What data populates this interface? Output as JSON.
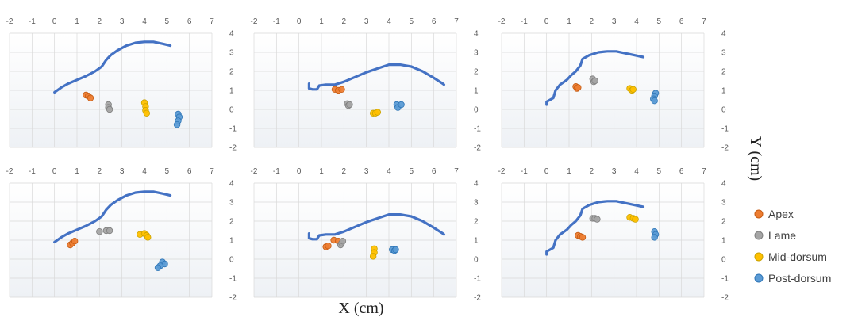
{
  "axis_titles": {
    "x": "X (cm)",
    "y": "Y (cm)"
  },
  "legend": [
    {
      "name": "Apex",
      "fill": "#ED7D31",
      "stroke": "#C55A11"
    },
    {
      "name": "Lame",
      "fill": "#A5A5A5",
      "stroke": "#7F7F7F"
    },
    {
      "name": "Mid-dorsum",
      "fill": "#FFC000",
      "stroke": "#C9A200"
    },
    {
      "name": "Post-dorsum",
      "fill": "#5B9BD5",
      "stroke": "#2E75B6"
    }
  ],
  "colors": {
    "curve": "#4472C4",
    "grid": "#D9D9D9",
    "plot_bg_top": "#FFFFFF",
    "plot_bg_bottom": "#EEF1F5"
  },
  "chart_data": [
    {
      "type": "scatter",
      "xlim": [
        -2,
        7
      ],
      "ylim": [
        -2,
        4
      ],
      "x_ticks": [
        -2,
        -1,
        0,
        1,
        2,
        3,
        4,
        5,
        6,
        7
      ],
      "y_ticks": [
        -2,
        -1,
        0,
        1,
        2,
        3,
        4
      ],
      "grid": true,
      "curve": [
        [
          0,
          0.9
        ],
        [
          0.3,
          1.15
        ],
        [
          0.6,
          1.35
        ],
        [
          1.0,
          1.55
        ],
        [
          1.4,
          1.75
        ],
        [
          1.8,
          2.0
        ],
        [
          2.1,
          2.25
        ],
        [
          2.3,
          2.6
        ],
        [
          2.5,
          2.85
        ],
        [
          2.8,
          3.1
        ],
        [
          3.2,
          3.35
        ],
        [
          3.6,
          3.5
        ],
        [
          4.0,
          3.55
        ],
        [
          4.4,
          3.55
        ],
        [
          4.8,
          3.45
        ],
        [
          5.15,
          3.35
        ]
      ],
      "series": [
        {
          "name": "Apex",
          "points": [
            [
              1.4,
              0.75
            ],
            [
              1.5,
              0.7
            ],
            [
              1.6,
              0.6
            ]
          ]
        },
        {
          "name": "Lame",
          "points": [
            [
              2.4,
              0.25
            ],
            [
              2.4,
              0.1
            ],
            [
              2.45,
              0.0
            ]
          ]
        },
        {
          "name": "Mid-dorsum",
          "points": [
            [
              4.0,
              0.35
            ],
            [
              4.05,
              0.15
            ],
            [
              4.05,
              -0.05
            ],
            [
              4.1,
              -0.2
            ]
          ]
        },
        {
          "name": "Post-dorsum",
          "points": [
            [
              5.5,
              -0.25
            ],
            [
              5.55,
              -0.4
            ],
            [
              5.5,
              -0.6
            ],
            [
              5.45,
              -0.8
            ]
          ]
        }
      ]
    },
    {
      "type": "scatter",
      "xlim": [
        -2,
        7
      ],
      "ylim": [
        -2,
        4
      ],
      "x_ticks": [
        -2,
        -1,
        0,
        1,
        2,
        3,
        4,
        5,
        6,
        7
      ],
      "y_ticks": [
        -2,
        -1,
        0,
        1,
        2,
        3,
        4
      ],
      "grid": true,
      "curve": [
        [
          0.45,
          1.35
        ],
        [
          0.45,
          1.1
        ],
        [
          0.6,
          1.05
        ],
        [
          0.8,
          1.05
        ],
        [
          0.9,
          1.25
        ],
        [
          1.2,
          1.3
        ],
        [
          1.6,
          1.3
        ],
        [
          2.0,
          1.45
        ],
        [
          2.5,
          1.7
        ],
        [
          3.0,
          1.95
        ],
        [
          3.5,
          2.15
        ],
        [
          4.0,
          2.35
        ],
        [
          4.5,
          2.35
        ],
        [
          5.0,
          2.25
        ],
        [
          5.5,
          2.0
        ],
        [
          6.0,
          1.65
        ],
        [
          6.4,
          1.35
        ],
        [
          6.45,
          1.3
        ]
      ],
      "series": [
        {
          "name": "Apex",
          "points": [
            [
              1.6,
              1.05
            ],
            [
              1.75,
              1.0
            ],
            [
              1.9,
              1.05
            ]
          ]
        },
        {
          "name": "Lame",
          "points": [
            [
              2.15,
              0.3
            ],
            [
              2.2,
              0.2
            ],
            [
              2.25,
              0.25
            ]
          ]
        },
        {
          "name": "Mid-dorsum",
          "points": [
            [
              3.3,
              -0.2
            ],
            [
              3.4,
              -0.2
            ],
            [
              3.5,
              -0.15
            ]
          ]
        },
        {
          "name": "Post-dorsum",
          "points": [
            [
              4.35,
              0.25
            ],
            [
              4.4,
              0.1
            ],
            [
              4.55,
              0.25
            ]
          ]
        }
      ]
    },
    {
      "type": "scatter",
      "xlim": [
        -2,
        7
      ],
      "ylim": [
        -2,
        4
      ],
      "x_ticks": [
        -2,
        -1,
        0,
        1,
        2,
        3,
        4,
        5,
        6,
        7
      ],
      "y_ticks": [
        -2,
        -1,
        0,
        1,
        2,
        3,
        4
      ],
      "grid": true,
      "curve": [
        [
          0,
          0.25
        ],
        [
          0,
          0.4
        ],
        [
          0.3,
          0.6
        ],
        [
          0.4,
          1.0
        ],
        [
          0.6,
          1.3
        ],
        [
          0.9,
          1.55
        ],
        [
          1.1,
          1.8
        ],
        [
          1.3,
          2.0
        ],
        [
          1.5,
          2.3
        ],
        [
          1.6,
          2.65
        ],
        [
          1.9,
          2.85
        ],
        [
          2.3,
          3.0
        ],
        [
          2.7,
          3.05
        ],
        [
          3.1,
          3.05
        ],
        [
          3.5,
          2.95
        ],
        [
          3.9,
          2.85
        ],
        [
          4.3,
          2.75
        ]
      ],
      "series": [
        {
          "name": "Apex",
          "points": [
            [
              1.3,
              1.2
            ],
            [
              1.35,
              1.1
            ],
            [
              1.4,
              1.15
            ]
          ]
        },
        {
          "name": "Lame",
          "points": [
            [
              2.05,
              1.6
            ],
            [
              2.1,
              1.45
            ],
            [
              2.15,
              1.5
            ]
          ]
        },
        {
          "name": "Mid-dorsum",
          "points": [
            [
              3.7,
              1.1
            ],
            [
              3.8,
              1.0
            ],
            [
              3.85,
              1.05
            ]
          ]
        },
        {
          "name": "Post-dorsum",
          "points": [
            [
              4.85,
              0.85
            ],
            [
              4.8,
              0.7
            ],
            [
              4.75,
              0.55
            ],
            [
              4.8,
              0.45
            ]
          ]
        }
      ]
    },
    {
      "type": "scatter",
      "xlim": [
        -2,
        7
      ],
      "ylim": [
        -2,
        4
      ],
      "x_ticks": [
        -2,
        -1,
        0,
        1,
        2,
        3,
        4,
        5,
        6,
        7
      ],
      "y_ticks": [
        -2,
        -1,
        0,
        1,
        2,
        3,
        4
      ],
      "grid": true,
      "curve": [
        [
          0,
          0.9
        ],
        [
          0.3,
          1.15
        ],
        [
          0.6,
          1.35
        ],
        [
          1.0,
          1.55
        ],
        [
          1.4,
          1.75
        ],
        [
          1.8,
          2.0
        ],
        [
          2.1,
          2.25
        ],
        [
          2.3,
          2.6
        ],
        [
          2.5,
          2.85
        ],
        [
          2.8,
          3.1
        ],
        [
          3.2,
          3.35
        ],
        [
          3.6,
          3.5
        ],
        [
          4.0,
          3.55
        ],
        [
          4.4,
          3.55
        ],
        [
          4.8,
          3.45
        ],
        [
          5.15,
          3.35
        ]
      ],
      "series": [
        {
          "name": "Apex",
          "points": [
            [
              0.7,
              0.75
            ],
            [
              0.8,
              0.85
            ],
            [
              0.9,
              0.95
            ]
          ]
        },
        {
          "name": "Lame",
          "points": [
            [
              2.0,
              1.45
            ],
            [
              2.3,
              1.5
            ],
            [
              2.45,
              1.5
            ]
          ]
        },
        {
          "name": "Mid-dorsum",
          "points": [
            [
              3.8,
              1.3
            ],
            [
              4.0,
              1.35
            ],
            [
              4.1,
              1.25
            ],
            [
              4.15,
              1.15
            ]
          ]
        },
        {
          "name": "Post-dorsum",
          "points": [
            [
              4.8,
              -0.15
            ],
            [
              4.9,
              -0.25
            ],
            [
              4.7,
              -0.35
            ],
            [
              4.6,
              -0.45
            ]
          ]
        }
      ]
    },
    {
      "type": "scatter",
      "xlim": [
        -2,
        7
      ],
      "ylim": [
        -2,
        4
      ],
      "x_ticks": [
        -2,
        -1,
        0,
        1,
        2,
        3,
        4,
        5,
        6,
        7
      ],
      "y_ticks": [
        -2,
        -1,
        0,
        1,
        2,
        3,
        4
      ],
      "grid": true,
      "curve": [
        [
          0.45,
          1.35
        ],
        [
          0.45,
          1.1
        ],
        [
          0.6,
          1.05
        ],
        [
          0.8,
          1.05
        ],
        [
          0.9,
          1.25
        ],
        [
          1.2,
          1.3
        ],
        [
          1.6,
          1.3
        ],
        [
          2.0,
          1.45
        ],
        [
          2.5,
          1.7
        ],
        [
          3.0,
          1.95
        ],
        [
          3.5,
          2.15
        ],
        [
          4.0,
          2.35
        ],
        [
          4.5,
          2.35
        ],
        [
          5.0,
          2.25
        ],
        [
          5.5,
          2.0
        ],
        [
          6.0,
          1.65
        ],
        [
          6.4,
          1.35
        ],
        [
          6.45,
          1.3
        ]
      ],
      "series": [
        {
          "name": "Apex",
          "points": [
            [
              1.2,
              0.65
            ],
            [
              1.3,
              0.7
            ],
            [
              1.55,
              1.0
            ],
            [
              1.75,
              0.95
            ]
          ]
        },
        {
          "name": "Lame",
          "points": [
            [
              1.85,
              0.75
            ],
            [
              1.9,
              0.85
            ],
            [
              1.95,
              0.95
            ]
          ]
        },
        {
          "name": "Mid-dorsum",
          "points": [
            [
              3.35,
              0.55
            ],
            [
              3.35,
              0.35
            ],
            [
              3.3,
              0.15
            ]
          ]
        },
        {
          "name": "Post-dorsum",
          "points": [
            [
              4.15,
              0.5
            ],
            [
              4.25,
              0.45
            ],
            [
              4.3,
              0.5
            ]
          ]
        }
      ]
    },
    {
      "type": "scatter",
      "xlim": [
        -2,
        7
      ],
      "ylim": [
        -2,
        4
      ],
      "x_ticks": [
        -2,
        -1,
        0,
        1,
        2,
        3,
        4,
        5,
        6,
        7
      ],
      "y_ticks": [
        -2,
        -1,
        0,
        1,
        2,
        3,
        4
      ],
      "grid": true,
      "curve": [
        [
          0,
          0.25
        ],
        [
          0,
          0.4
        ],
        [
          0.3,
          0.6
        ],
        [
          0.4,
          1.0
        ],
        [
          0.6,
          1.3
        ],
        [
          0.9,
          1.55
        ],
        [
          1.1,
          1.8
        ],
        [
          1.3,
          2.0
        ],
        [
          1.5,
          2.3
        ],
        [
          1.6,
          2.65
        ],
        [
          1.9,
          2.85
        ],
        [
          2.3,
          3.0
        ],
        [
          2.7,
          3.05
        ],
        [
          3.1,
          3.05
        ],
        [
          3.5,
          2.95
        ],
        [
          3.9,
          2.85
        ],
        [
          4.3,
          2.75
        ]
      ],
      "series": [
        {
          "name": "Apex",
          "points": [
            [
              1.4,
              1.25
            ],
            [
              1.5,
              1.2
            ],
            [
              1.6,
              1.15
            ]
          ]
        },
        {
          "name": "Lame",
          "points": [
            [
              2.05,
              2.15
            ],
            [
              2.15,
              2.15
            ],
            [
              2.25,
              2.1
            ]
          ]
        },
        {
          "name": "Mid-dorsum",
          "points": [
            [
              3.7,
              2.2
            ],
            [
              3.85,
              2.15
            ],
            [
              3.95,
              2.1
            ]
          ]
        },
        {
          "name": "Post-dorsum",
          "points": [
            [
              4.8,
              1.45
            ],
            [
              4.85,
              1.3
            ],
            [
              4.8,
              1.15
            ]
          ]
        }
      ]
    }
  ]
}
